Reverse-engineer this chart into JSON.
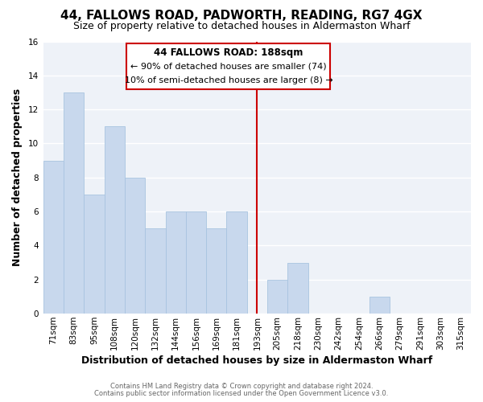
{
  "title": "44, FALLOWS ROAD, PADWORTH, READING, RG7 4GX",
  "subtitle": "Size of property relative to detached houses in Aldermaston Wharf",
  "xlabel": "Distribution of detached houses by size in Aldermaston Wharf",
  "ylabel": "Number of detached properties",
  "categories": [
    "71sqm",
    "83sqm",
    "95sqm",
    "108sqm",
    "120sqm",
    "132sqm",
    "144sqm",
    "156sqm",
    "169sqm",
    "181sqm",
    "193sqm",
    "205sqm",
    "218sqm",
    "230sqm",
    "242sqm",
    "254sqm",
    "266sqm",
    "279sqm",
    "291sqm",
    "303sqm",
    "315sqm"
  ],
  "values": [
    9,
    13,
    7,
    11,
    8,
    5,
    6,
    6,
    5,
    6,
    0,
    2,
    3,
    0,
    0,
    0,
    1,
    0,
    0,
    0,
    0
  ],
  "bar_color_normal": "#c8d8ed",
  "bar_edge_color": "#a8c4e0",
  "vertical_line_index": 10,
  "vertical_line_color": "#cc0000",
  "ylim": [
    0,
    16
  ],
  "yticks": [
    0,
    2,
    4,
    6,
    8,
    10,
    12,
    14,
    16
  ],
  "annotation_title": "44 FALLOWS ROAD: 188sqm",
  "annotation_line1": "← 90% of detached houses are smaller (74)",
  "annotation_line2": "10% of semi-detached houses are larger (8) →",
  "footer_line1": "Contains HM Land Registry data © Crown copyright and database right 2024.",
  "footer_line2": "Contains public sector information licensed under the Open Government Licence v3.0.",
  "figure_bg": "#ffffff",
  "axes_bg": "#eef2f8",
  "grid_color": "#ffffff",
  "box_edge_color": "#cc0000",
  "box_face_color": "#ffffff",
  "title_fontsize": 11,
  "subtitle_fontsize": 9,
  "ylabel_fontsize": 9,
  "xlabel_fontsize": 9,
  "tick_fontsize": 7.5,
  "footer_fontsize": 6,
  "ann_title_fontsize": 8.5,
  "ann_text_fontsize": 8
}
